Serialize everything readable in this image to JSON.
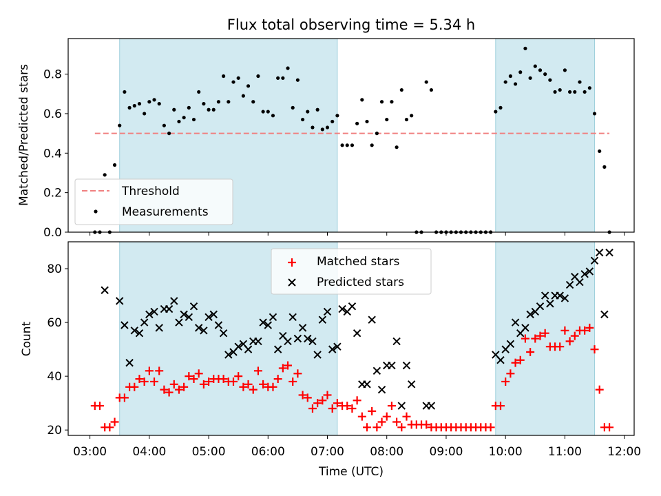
{
  "chart_data": [
    {
      "type": "scatter",
      "title": "Flux total observing time = 5.34 h",
      "xlabel": "",
      "ylabel": "Matched/Predicted stars",
      "xlim": [
        "02:38",
        "12:10"
      ],
      "ylim": [
        0,
        0.98
      ],
      "yticks": [
        0.0,
        0.2,
        0.4,
        0.6,
        0.8
      ],
      "ytick_labels": [
        "0.0",
        "0.2",
        "0.4",
        "0.6",
        "0.8"
      ],
      "shaded_intervals": [
        [
          "03:30",
          "07:10"
        ],
        [
          "09:50",
          "11:30"
        ]
      ],
      "shade_color": "#add8e6",
      "legend": {
        "placement": "lower-left",
        "entries": [
          "Threshold",
          "Measurements"
        ]
      },
      "threshold": {
        "name": "Threshold",
        "y": 0.5,
        "x_range": [
          "03:05",
          "11:45"
        ],
        "color": "#f08080"
      },
      "series": [
        {
          "name": "Measurements",
          "color": "#000000",
          "x": [
            "03:05",
            "03:10",
            "03:15",
            "03:20",
            "03:25",
            "03:30",
            "03:35",
            "03:40",
            "03:45",
            "03:50",
            "03:55",
            "04:00",
            "04:05",
            "04:10",
            "04:15",
            "04:20",
            "04:25",
            "04:30",
            "04:35",
            "04:40",
            "04:45",
            "04:50",
            "04:55",
            "05:00",
            "05:05",
            "05:10",
            "05:15",
            "05:20",
            "05:25",
            "05:30",
            "05:35",
            "05:40",
            "05:45",
            "05:50",
            "05:55",
            "06:00",
            "06:05",
            "06:10",
            "06:15",
            "06:20",
            "06:25",
            "06:30",
            "06:35",
            "06:40",
            "06:45",
            "06:50",
            "06:55",
            "07:00",
            "07:05",
            "07:10",
            "07:15",
            "07:20",
            "07:25",
            "07:30",
            "07:35",
            "07:40",
            "07:45",
            "07:50",
            "07:55",
            "08:00",
            "08:05",
            "08:10",
            "08:15",
            "08:20",
            "08:25",
            "08:30",
            "08:35",
            "08:40",
            "08:45",
            "08:50",
            "08:55",
            "09:00",
            "09:05",
            "09:10",
            "09:15",
            "09:20",
            "09:25",
            "09:30",
            "09:35",
            "09:40",
            "09:45",
            "09:50",
            "09:55",
            "10:00",
            "10:05",
            "10:10",
            "10:15",
            "10:20",
            "10:25",
            "10:30",
            "10:35",
            "10:40",
            "10:45",
            "10:50",
            "10:55",
            "11:00",
            "11:05",
            "11:10",
            "11:15",
            "11:20",
            "11:25",
            "11:30",
            "11:35",
            "11:40",
            "11:45"
          ],
          "y": [
            0.0,
            0.0,
            0.29,
            0.0,
            0.34,
            0.54,
            0.71,
            0.63,
            0.64,
            0.65,
            0.6,
            0.66,
            0.67,
            0.65,
            0.54,
            0.5,
            0.62,
            0.56,
            0.58,
            0.63,
            0.57,
            0.71,
            0.65,
            0.62,
            0.62,
            0.66,
            0.79,
            0.66,
            0.76,
            0.78,
            0.69,
            0.74,
            0.66,
            0.79,
            0.61,
            0.61,
            0.59,
            0.78,
            0.78,
            0.83,
            0.63,
            0.77,
            0.57,
            0.61,
            0.53,
            0.62,
            0.52,
            0.53,
            0.56,
            0.59,
            0.44,
            0.44,
            0.44,
            0.55,
            0.67,
            0.56,
            0.44,
            0.5,
            0.66,
            0.57,
            0.66,
            0.43,
            0.72,
            0.57,
            0.59,
            0.0,
            0.0,
            0.76,
            0.72,
            0.0,
            0.0,
            0.0,
            0.0,
            0.0,
            0.0,
            0.0,
            0.0,
            0.0,
            0.0,
            0.0,
            0.0,
            0.61,
            0.63,
            0.76,
            0.79,
            0.75,
            0.81,
            0.93,
            0.78,
            0.84,
            0.82,
            0.8,
            0.77,
            0.71,
            0.72,
            0.82,
            0.71,
            0.71,
            0.76,
            0.71,
            0.73,
            0.6,
            0.41,
            0.33,
            0.0
          ]
        }
      ]
    },
    {
      "type": "scatter",
      "title": "",
      "xlabel": "Time (UTC)",
      "ylabel": "Count",
      "xlim": [
        "02:38",
        "12:10"
      ],
      "ylim": [
        18,
        90
      ],
      "xticks": [
        "03:00",
        "04:00",
        "05:00",
        "06:00",
        "07:00",
        "08:00",
        "09:00",
        "10:00",
        "11:00",
        "12:00"
      ],
      "yticks": [
        20,
        40,
        60,
        80
      ],
      "shaded_intervals": [
        [
          "03:30",
          "07:10"
        ],
        [
          "09:50",
          "11:30"
        ]
      ],
      "shade_color": "#add8e6",
      "legend": {
        "placement": "upper-center",
        "entries": [
          "Matched stars",
          "Predicted stars"
        ]
      },
      "series": [
        {
          "name": "Matched stars",
          "marker": "+",
          "color": "#ff0000",
          "x": [
            "03:05",
            "03:10",
            "03:15",
            "03:20",
            "03:25",
            "03:30",
            "03:35",
            "03:40",
            "03:45",
            "03:50",
            "03:55",
            "04:00",
            "04:05",
            "04:10",
            "04:15",
            "04:20",
            "04:25",
            "04:30",
            "04:35",
            "04:40",
            "04:45",
            "04:50",
            "04:55",
            "05:00",
            "05:05",
            "05:10",
            "05:15",
            "05:20",
            "05:25",
            "05:30",
            "05:35",
            "05:40",
            "05:45",
            "05:50",
            "05:55",
            "06:00",
            "06:05",
            "06:10",
            "06:15",
            "06:20",
            "06:25",
            "06:30",
            "06:35",
            "06:40",
            "06:45",
            "06:50",
            "06:55",
            "07:00",
            "07:05",
            "07:10",
            "07:15",
            "07:20",
            "07:25",
            "07:30",
            "07:35",
            "07:40",
            "07:45",
            "07:50",
            "07:55",
            "08:00",
            "08:05",
            "08:10",
            "08:15",
            "08:20",
            "08:25",
            "08:30",
            "08:35",
            "08:40",
            "08:45",
            "08:50",
            "08:55",
            "09:00",
            "09:05",
            "09:10",
            "09:15",
            "09:20",
            "09:25",
            "09:30",
            "09:35",
            "09:40",
            "09:45",
            "09:50",
            "09:55",
            "10:00",
            "10:05",
            "10:10",
            "10:15",
            "10:20",
            "10:25",
            "10:30",
            "10:35",
            "10:40",
            "10:45",
            "10:50",
            "10:55",
            "11:00",
            "11:05",
            "11:10",
            "11:15",
            "11:20",
            "11:25",
            "11:30",
            "11:35",
            "11:40",
            "11:45"
          ],
          "y": [
            29,
            29,
            21,
            21,
            23,
            32,
            32,
            36,
            36,
            39,
            38,
            42,
            38,
            42,
            35,
            34,
            37,
            35,
            36,
            40,
            39,
            41,
            37,
            38,
            39,
            39,
            39,
            38,
            38,
            40,
            36,
            37,
            35,
            42,
            37,
            36,
            36,
            39,
            43,
            44,
            38,
            41,
            33,
            32,
            28,
            30,
            31,
            33,
            28,
            30,
            29,
            29,
            28,
            31,
            25,
            21,
            27,
            21,
            23,
            25,
            29,
            23,
            21,
            25,
            22,
            22,
            22,
            22,
            21,
            21,
            21,
            21,
            21,
            21,
            21,
            21,
            21,
            21,
            21,
            21,
            21,
            29,
            29,
            38,
            41,
            45,
            46,
            54,
            49,
            54,
            55,
            56,
            51,
            51,
            51,
            57,
            53,
            55,
            57,
            57,
            58,
            50,
            35,
            21,
            21
          ]
        },
        {
          "name": "Predicted stars",
          "marker": "x",
          "color": "#000000",
          "x": [
            "03:15",
            "03:30",
            "03:35",
            "03:40",
            "03:45",
            "03:50",
            "03:55",
            "04:00",
            "04:05",
            "04:10",
            "04:15",
            "04:20",
            "04:25",
            "04:30",
            "04:35",
            "04:40",
            "04:45",
            "04:50",
            "04:55",
            "05:00",
            "05:05",
            "05:10",
            "05:15",
            "05:20",
            "05:25",
            "05:30",
            "05:35",
            "05:40",
            "05:45",
            "05:50",
            "05:55",
            "06:00",
            "06:05",
            "06:10",
            "06:15",
            "06:20",
            "06:25",
            "06:30",
            "06:35",
            "06:40",
            "06:45",
            "06:50",
            "06:55",
            "07:00",
            "07:05",
            "07:10",
            "07:15",
            "07:20",
            "07:25",
            "07:30",
            "07:35",
            "07:40",
            "07:45",
            "07:50",
            "07:55",
            "08:00",
            "08:05",
            "08:10",
            "08:15",
            "08:20",
            "08:25",
            "08:40",
            "08:45",
            "09:50",
            "09:55",
            "10:00",
            "10:05",
            "10:10",
            "10:15",
            "10:20",
            "10:25",
            "10:30",
            "10:35",
            "10:40",
            "10:45",
            "10:50",
            "10:55",
            "11:00",
            "11:05",
            "11:10",
            "11:15",
            "11:20",
            "11:25",
            "11:30",
            "11:35",
            "11:40",
            "11:45"
          ],
          "y": [
            72,
            68,
            59,
            45,
            57,
            56,
            60,
            63,
            64,
            58,
            65,
            65,
            68,
            60,
            63,
            62,
            66,
            58,
            57,
            62,
            63,
            59,
            56,
            48,
            49,
            51,
            52,
            50,
            53,
            53,
            60,
            59,
            62,
            50,
            55,
            53,
            62,
            54,
            58,
            54,
            53,
            48,
            61,
            64,
            50,
            51,
            65,
            64,
            66,
            56,
            37,
            37,
            61,
            42,
            35,
            44,
            44,
            53,
            29,
            44,
            37,
            29,
            29,
            48,
            46,
            50,
            52,
            60,
            56,
            58,
            63,
            64,
            66,
            70,
            67,
            70,
            70,
            69,
            74,
            77,
            75,
            78,
            79,
            83,
            86,
            63,
            86
          ]
        }
      ]
    }
  ]
}
